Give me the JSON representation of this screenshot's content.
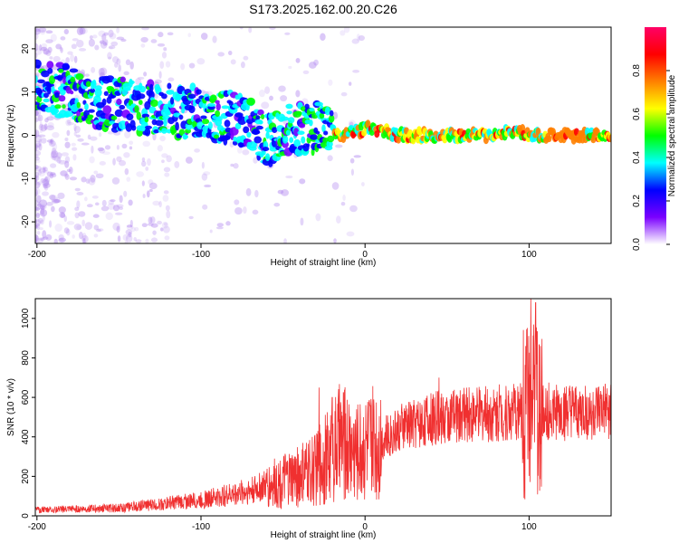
{
  "title": "S173.2025.162.00.20.C26",
  "chart_data": [
    {
      "type": "heatmap",
      "xlabel": "Height of straight line (km)",
      "ylabel": "Frequency (Hz)",
      "xlim": [
        -201,
        150
      ],
      "ylim": [
        -25,
        25
      ],
      "x_ticks": [
        -200,
        -100,
        0,
        100
      ],
      "y_ticks": [
        -20,
        -10,
        0,
        10,
        20
      ],
      "colorbar": {
        "label": "Normalized spectral amplitude",
        "range": [
          0,
          1
        ],
        "ticks": [
          0.0,
          0.2,
          0.4,
          0.6,
          0.8
        ],
        "tick_labels": [
          "0.0",
          "0.2",
          "0.4",
          "0.6",
          "0.8"
        ],
        "colors": [
          "#ffffff",
          "#7a00ff",
          "#0000ff",
          "#00ffff",
          "#00ff00",
          "#ffff00",
          "#ff8000",
          "#ff0000",
          "#ff0066"
        ]
      },
      "ridge": [
        {
          "x": -200,
          "y": 12
        },
        {
          "x": -175,
          "y": 9
        },
        {
          "x": -150,
          "y": 7
        },
        {
          "x": -125,
          "y": 6
        },
        {
          "x": -100,
          "y": 5
        },
        {
          "x": -75,
          "y": 3.5
        },
        {
          "x": -60,
          "y": -1
        },
        {
          "x": -40,
          "y": 1.5
        },
        {
          "x": -25,
          "y": 2
        },
        {
          "x": -15,
          "y": 0
        },
        {
          "x": 0,
          "y": 1.5
        },
        {
          "x": 25,
          "y": 0
        },
        {
          "x": 50,
          "y": 0
        },
        {
          "x": 75,
          "y": 0
        },
        {
          "x": 90,
          "y": 1
        },
        {
          "x": 100,
          "y": 0
        },
        {
          "x": 125,
          "y": 0
        },
        {
          "x": 150,
          "y": 0
        }
      ]
    },
    {
      "type": "line",
      "xlabel": "Height of straight line (km)",
      "ylabel": "SNR (10 * v/v)",
      "xlim": [
        -201,
        150
      ],
      "ylim": [
        0,
        1100
      ],
      "x_ticks": [
        -200,
        -100,
        0,
        100
      ],
      "y_ticks": [
        0,
        200,
        400,
        600,
        800,
        1000
      ],
      "color": "#f03030",
      "series": [
        {
          "envelope": [
            {
              "x": -200,
              "y": 30
            },
            {
              "x": -150,
              "y": 40
            },
            {
              "x": -100,
              "y": 80
            },
            {
              "x": -80,
              "y": 110
            },
            {
              "x": -60,
              "y": 150
            },
            {
              "x": -40,
              "y": 200
            },
            {
              "x": -30,
              "y": 240
            },
            {
              "x": -25,
              "y": 280
            },
            {
              "x": -20,
              "y": 320
            },
            {
              "x": -15,
              "y": 380
            },
            {
              "x": -5,
              "y": 330
            },
            {
              "x": 5,
              "y": 370
            },
            {
              "x": 15,
              "y": 410
            },
            {
              "x": 25,
              "y": 460
            },
            {
              "x": 40,
              "y": 490
            },
            {
              "x": 60,
              "y": 510
            },
            {
              "x": 80,
              "y": 520
            },
            {
              "x": 95,
              "y": 530
            },
            {
              "x": 100,
              "y": 520
            },
            {
              "x": 110,
              "y": 530
            },
            {
              "x": 130,
              "y": 520
            },
            {
              "x": 150,
              "y": 530
            }
          ],
          "peaks": [
            {
              "x": -28,
              "y": 650
            },
            {
              "x": -20,
              "y": 600
            },
            {
              "x": 45,
              "y": 700
            },
            {
              "x": 98,
              "y": 860
            },
            {
              "x": 101,
              "y": 1100
            },
            {
              "x": 104,
              "y": 1080
            },
            {
              "x": 107,
              "y": 860
            }
          ]
        }
      ]
    }
  ]
}
